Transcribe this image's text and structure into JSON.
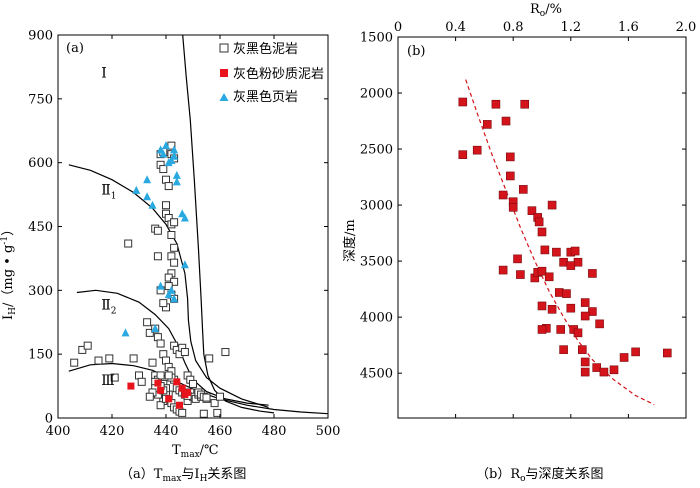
{
  "chart_data": [
    {
      "type": "scatter",
      "panel_label": "(a)",
      "caption": {
        "prefix": "（a）",
        "t": "T",
        "t_sub": "max",
        "mid": "与I",
        "i_sub": "H",
        "suffix": "关系图"
      },
      "xlabel": {
        "main": "T",
        "sub": "max",
        "unit": "/℃"
      },
      "ylabel": {
        "main": "I",
        "sub": "H",
        "unit": "/（mg • g",
        "sup": "-1",
        "close": "）"
      },
      "xlim": [
        400,
        500
      ],
      "ylim": [
        0,
        900
      ],
      "xticks": [
        "400",
        "420",
        "440",
        "460",
        "480",
        "500"
      ],
      "yticks": [
        "0",
        "150",
        "300",
        "450",
        "600",
        "750",
        "900"
      ],
      "zones": [
        {
          "label": "Ⅰ",
          "sub": "",
          "x": 416,
          "y": 800
        },
        {
          "label": "Ⅱ",
          "sub": "1",
          "x": 416,
          "y": 525
        },
        {
          "label": "Ⅱ",
          "sub": "2",
          "x": 416,
          "y": 255
        },
        {
          "label": "Ⅲ",
          "sub": "",
          "x": 416,
          "y": 78
        }
      ],
      "boundaries": [
        [
          [
            446.2,
            900
          ],
          [
            447.5,
            800
          ],
          [
            449,
            700
          ],
          [
            450.5,
            560
          ],
          [
            452,
            400
          ],
          [
            453,
            280
          ],
          [
            453.6,
            200
          ],
          [
            454,
            150
          ],
          [
            455.5,
            100
          ],
          [
            458,
            65
          ],
          [
            462,
            40
          ],
          [
            468,
            25
          ],
          [
            475,
            16
          ],
          [
            480,
            12
          ]
        ],
        [
          [
            404,
            595
          ],
          [
            412,
            582
          ],
          [
            420,
            560
          ],
          [
            428,
            530
          ],
          [
            435,
            493
          ],
          [
            440,
            455
          ],
          [
            444,
            410
          ],
          [
            447,
            340
          ],
          [
            448,
            280
          ],
          [
            448.3,
            230
          ],
          [
            449.2,
            180
          ],
          [
            451,
            135
          ],
          [
            455,
            95
          ],
          [
            460,
            70
          ],
          [
            468,
            45
          ],
          [
            478,
            25
          ]
        ],
        [
          [
            407,
            295
          ],
          [
            414,
            300
          ],
          [
            422,
            293
          ],
          [
            430,
            272
          ],
          [
            436,
            243
          ],
          [
            441,
            210
          ],
          [
            444,
            175
          ],
          [
            447,
            130
          ],
          [
            450,
            90
          ],
          [
            455,
            62
          ],
          [
            462,
            45
          ],
          [
            470,
            35
          ],
          [
            478,
            30
          ]
        ],
        [
          [
            404,
            110
          ],
          [
            412,
            125
          ],
          [
            420,
            128
          ],
          [
            428,
            123
          ],
          [
            435,
            112
          ],
          [
            441,
            95
          ],
          [
            446,
            80
          ],
          [
            452,
            62
          ],
          [
            460,
            45
          ],
          [
            470,
            30
          ],
          [
            480,
            20
          ],
          [
            490,
            14
          ],
          [
            500,
            10
          ]
        ]
      ],
      "series": [
        {
          "name": "灰黑色泥岩",
          "marker": "open-square",
          "color": "#333333",
          "points": [
            [
              406,
              130
            ],
            [
              409,
              160
            ],
            [
              411,
              170
            ],
            [
              415,
              135
            ],
            [
              419,
              140
            ],
            [
              421,
              95
            ],
            [
              426,
              410
            ],
            [
              428,
              140
            ],
            [
              430,
              100
            ],
            [
              431,
              85
            ],
            [
              433,
              225
            ],
            [
              434,
              200
            ],
            [
              435,
              130
            ],
            [
              436,
              100
            ],
            [
              436,
              445
            ],
            [
              437,
              440
            ],
            [
              437,
              380
            ],
            [
              438,
              620
            ],
            [
              438,
              595
            ],
            [
              439,
              625
            ],
            [
              439,
              585
            ],
            [
              440,
              560
            ],
            [
              440,
              500
            ],
            [
              440,
              480
            ],
            [
              441,
              470
            ],
            [
              441,
              545
            ],
            [
              442,
              640
            ],
            [
              442,
              620
            ],
            [
              443,
              610
            ],
            [
              442,
              455
            ],
            [
              443,
              460
            ],
            [
              442,
              430
            ],
            [
              443,
              400
            ],
            [
              442,
              380
            ],
            [
              443,
              365
            ],
            [
              442,
              340
            ],
            [
              441,
              330
            ],
            [
              443,
              320
            ],
            [
              441,
              310
            ],
            [
              442,
              290
            ],
            [
              443,
              280
            ],
            [
              440,
              260
            ],
            [
              438,
              300
            ],
            [
              439,
              270
            ],
            [
              436,
              210
            ],
            [
              437,
              190
            ],
            [
              438,
              175
            ],
            [
              439,
              150
            ],
            [
              440,
              135
            ],
            [
              441,
              120
            ],
            [
              442,
              110
            ],
            [
              443,
              170
            ],
            [
              444,
              160
            ],
            [
              445,
              150
            ],
            [
              446,
              165
            ],
            [
              447,
              155
            ],
            [
              441,
              55
            ],
            [
              440,
              60
            ],
            [
              439,
              40
            ],
            [
              438,
              30
            ],
            [
              439,
              80
            ],
            [
              437,
              90
            ],
            [
              438,
              100
            ],
            [
              436,
              85
            ],
            [
              437,
              55
            ],
            [
              440,
              45
            ],
            [
              442,
              35
            ],
            [
              443,
              25
            ],
            [
              444,
              20
            ],
            [
              445,
              15
            ],
            [
              446,
              12
            ],
            [
              448,
              40
            ],
            [
              449,
              60
            ],
            [
              450,
              50
            ],
            [
              451,
              45
            ],
            [
              452,
              55
            ],
            [
              453,
              50
            ],
            [
              454,
              10
            ],
            [
              455,
              45
            ],
            [
              456,
              140
            ],
            [
              458,
              35
            ],
            [
              460,
              50
            ],
            [
              462,
              155
            ],
            [
              459,
              12
            ],
            [
              448,
              100
            ],
            [
              449,
              90
            ],
            [
              450,
              80
            ],
            [
              452,
              60
            ],
            [
              453,
              55
            ],
            [
              454,
              50
            ],
            [
              455,
              48
            ],
            [
              444,
              70
            ],
            [
              445,
              65
            ],
            [
              446,
              60
            ],
            [
              447,
              55
            ],
            [
              448,
              52
            ],
            [
              443,
              90
            ],
            [
              442,
              95
            ],
            [
              441,
              100
            ],
            [
              440,
              70
            ],
            [
              439,
              65
            ],
            [
              438,
              75
            ],
            [
              436,
              70
            ],
            [
              435,
              60
            ],
            [
              434,
              50
            ]
          ]
        },
        {
          "name": "灰色粉砂质泥岩",
          "marker": "filled-square",
          "color": "#e8141c",
          "points": [
            [
              427,
              75
            ],
            [
              437,
              82
            ],
            [
              438,
              65
            ],
            [
              441,
              45
            ],
            [
              444,
              85
            ],
            [
              445,
              30
            ],
            [
              446,
              70
            ],
            [
              447,
              55
            ],
            [
              448,
              60
            ]
          ]
        },
        {
          "name": "灰黑色页岩",
          "marker": "triangle",
          "color": "#29a9e0",
          "points": [
            [
              429,
              535
            ],
            [
              433,
              520
            ],
            [
              433,
              560
            ],
            [
              435,
              500
            ],
            [
              438,
              630
            ],
            [
              439,
              620
            ],
            [
              440,
              640
            ],
            [
              441,
              600
            ],
            [
              442,
              605
            ],
            [
              443,
              630
            ],
            [
              443,
              615
            ],
            [
              444,
              570
            ],
            [
              444,
              555
            ],
            [
              446,
              480
            ],
            [
              447,
              470
            ],
            [
              447,
              360
            ],
            [
              441,
              290
            ],
            [
              442,
              300
            ],
            [
              443,
              280
            ],
            [
              438,
              310
            ],
            [
              436,
              210
            ],
            [
              425,
              200
            ]
          ]
        }
      ],
      "legend": [
        "灰黑色泥岩",
        "灰色粉砂质泥岩",
        "灰黑色页岩"
      ],
      "legend_position": "top-right"
    },
    {
      "type": "scatter",
      "panel_label": "(b)",
      "caption": {
        "prefix": "（b）",
        "r": "R",
        "r_sub": "o",
        "suffix": "与深度关系图"
      },
      "xlabel": {
        "main": "R",
        "sub": "o",
        "unit": "/%"
      },
      "ylabel": {
        "main": "深度/m"
      },
      "xlim": [
        0.0,
        2.0
      ],
      "ylim": [
        1500,
        4900
      ],
      "y_inverted": true,
      "x_axis_position": "top",
      "xticks": [
        "0",
        "0.4",
        "0.8",
        "1.2",
        "1.6",
        "2.0"
      ],
      "yticks": [
        "1500",
        "2000",
        "2500",
        "3000",
        "3500",
        "4000",
        "4500"
      ],
      "trend_line": {
        "style": "dashed",
        "color": "#d4141b",
        "points": [
          [
            0.47,
            1880
          ],
          [
            0.55,
            2180
          ],
          [
            0.65,
            2540
          ],
          [
            0.75,
            2870
          ],
          [
            0.85,
            3200
          ],
          [
            0.95,
            3500
          ],
          [
            1.05,
            3770
          ],
          [
            1.15,
            4000
          ],
          [
            1.25,
            4210
          ],
          [
            1.35,
            4380
          ],
          [
            1.5,
            4560
          ],
          [
            1.65,
            4700
          ],
          [
            1.78,
            4780
          ]
        ]
      },
      "series": [
        {
          "name": "Ro",
          "marker": "filled-square",
          "color": "#d4141b",
          "points": [
            [
              0.45,
              2080
            ],
            [
              0.68,
              2100
            ],
            [
              0.88,
              2100
            ],
            [
              0.62,
              2280
            ],
            [
              0.75,
              2250
            ],
            [
              0.45,
              2550
            ],
            [
              0.55,
              2510
            ],
            [
              0.78,
              2570
            ],
            [
              0.78,
              2740
            ],
            [
              0.87,
              2860
            ],
            [
              0.73,
              2910
            ],
            [
              0.8,
              2970
            ],
            [
              0.8,
              3020
            ],
            [
              0.93,
              3050
            ],
            [
              0.97,
              3110
            ],
            [
              1.07,
              3000
            ],
            [
              0.98,
              3150
            ],
            [
              1.0,
              3240
            ],
            [
              1.02,
              3400
            ],
            [
              1.1,
              3420
            ],
            [
              1.2,
              3420
            ],
            [
              1.23,
              3410
            ],
            [
              1.25,
              3510
            ],
            [
              1.15,
              3510
            ],
            [
              1.2,
              3540
            ],
            [
              1.35,
              3610
            ],
            [
              0.73,
              3580
            ],
            [
              0.83,
              3480
            ],
            [
              0.85,
              3620
            ],
            [
              0.95,
              3650
            ],
            [
              0.97,
              3600
            ],
            [
              1.0,
              3590
            ],
            [
              1.05,
              3640
            ],
            [
              1.12,
              3780
            ],
            [
              1.17,
              3790
            ],
            [
              1.0,
              3900
            ],
            [
              1.07,
              3930
            ],
            [
              1.2,
              3920
            ],
            [
              1.3,
              3870
            ],
            [
              1.35,
              3950
            ],
            [
              1.3,
              3990
            ],
            [
              1.4,
              4060
            ],
            [
              1.22,
              4110
            ],
            [
              1.13,
              4110
            ],
            [
              1.03,
              4100
            ],
            [
              1.0,
              4110
            ],
            [
              1.25,
              4140
            ],
            [
              1.15,
              4290
            ],
            [
              1.28,
              4290
            ],
            [
              1.3,
              4400
            ],
            [
              1.38,
              4450
            ],
            [
              1.3,
              4490
            ],
            [
              1.43,
              4490
            ],
            [
              1.5,
              4470
            ],
            [
              1.57,
              4360
            ],
            [
              1.65,
              4310
            ],
            [
              1.87,
              4320
            ]
          ]
        }
      ]
    }
  ]
}
